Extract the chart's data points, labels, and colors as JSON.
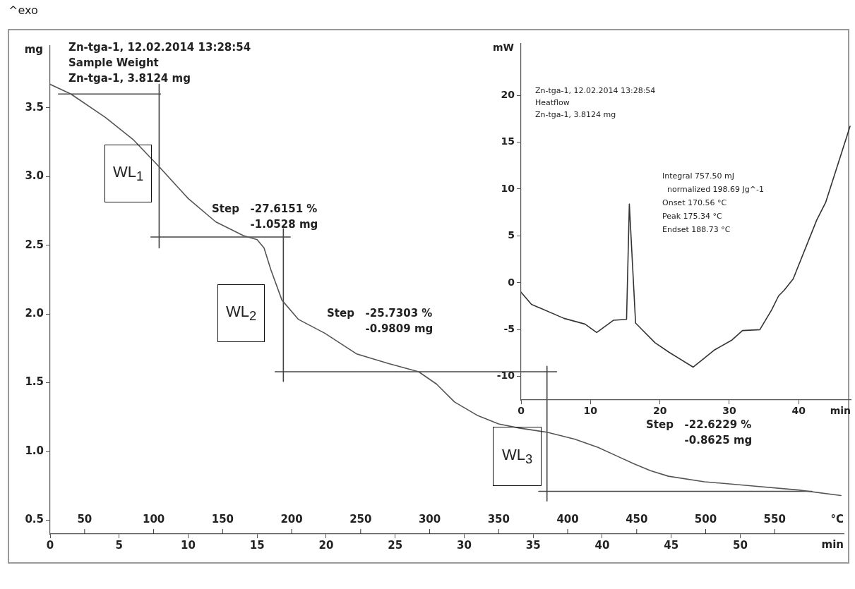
{
  "chart_data": [
    {
      "type": "line",
      "title": "Zn-tga-1, 12.02.2014 13:28:54",
      "subtitle": "Sample Weight",
      "xlabel": "min",
      "x2label": "°C",
      "ylabel": "mg",
      "xlim": [
        0,
        57.5
      ],
      "xticks": [
        0,
        5,
        10,
        15,
        20,
        25,
        30,
        35,
        40,
        45,
        50
      ],
      "x2lim": [
        25,
        600
      ],
      "x2ticks": [
        50,
        100,
        150,
        200,
        250,
        300,
        350,
        400,
        450,
        500,
        550
      ],
      "ylim": [
        0.4,
        3.95
      ],
      "yticks": [
        0.5,
        {
          "value": 1,
          "label": "1.0"
        },
        1.5,
        {
          "value": 2,
          "label": "2.0"
        },
        2.5,
        {
          "value": 3,
          "label": "3.0"
        },
        3.5
      ],
      "grid": false,
      "legend": false,
      "series": [
        {
          "type": "line",
          "color": "#555555",
          "x": [
            0,
            1.5,
            4,
            6,
            8,
            10,
            12,
            14,
            15,
            15.5,
            16,
            16.8,
            18,
            19.9,
            22.2,
            24.5,
            26.7,
            28,
            29.3,
            31,
            32.5,
            34,
            36,
            38,
            39.7,
            41,
            42.3,
            43.5,
            44.8,
            47.4,
            50.8,
            54.2,
            57.3
          ],
          "values": [
            3.67,
            3.6,
            3.43,
            3.27,
            3.06,
            2.84,
            2.67,
            2.57,
            2.54,
            2.48,
            2.32,
            2.1,
            1.96,
            1.86,
            1.71,
            1.64,
            1.58,
            1.49,
            1.36,
            1.26,
            1.2,
            1.17,
            1.14,
            1.09,
            1.03,
            0.97,
            0.91,
            0.86,
            0.82,
            0.78,
            0.75,
            0.72,
            0.68
          ]
        },
        {
          "type": "line",
          "color": "#444444",
          "x": [
            0.6,
            8
          ],
          "values": [
            3.6,
            3.6
          ]
        },
        {
          "type": "line",
          "color": "#444444",
          "x": [
            7.9,
            7.9
          ],
          "values": [
            3.67,
            2.48
          ]
        },
        {
          "type": "line",
          "color": "#444444",
          "x": [
            7.3,
            17.4
          ],
          "values": [
            2.56,
            2.56
          ]
        },
        {
          "type": "line",
          "color": "#444444",
          "x": [
            16.9,
            16.9
          ],
          "values": [
            2.62,
            1.51
          ]
        },
        {
          "type": "line",
          "color": "#444444",
          "x": [
            16.3,
            36.7
          ],
          "values": [
            1.58,
            1.58
          ]
        },
        {
          "type": "line",
          "color": "#444444",
          "x": [
            36,
            36
          ],
          "values": [
            1.62,
            0.64
          ]
        },
        {
          "type": "line",
          "color": "#444444",
          "x": [
            35.4,
            55.2
          ],
          "values": [
            0.71,
            0.71
          ]
        }
      ],
      "annotations": [
        "Zn-tga-1, 3.8124 mg",
        "^exo",
        "Step -27.6151 %\n-1.0528 mg",
        "Step -25.7303 %\n-0.9809 mg",
        "Step -22.6229 %\n-0.8625 mg",
        "WL$_{1}$",
        "WL$_{2}$",
        "WL$_{3}$"
      ]
    },
    {
      "type": "line",
      "title": "Zn-tga-1, 12.02.2014 13:28:54",
      "subtitle": "Heatflow",
      "xlabel": "min",
      "ylabel": "mW",
      "xlim": [
        0,
        47.5
      ],
      "xticks": [
        0,
        10,
        20,
        30,
        40
      ],
      "ylim": [
        -12.5,
        25.5
      ],
      "yticks": [
        -10,
        -5,
        0,
        5,
        10,
        15,
        20
      ],
      "grid": false,
      "legend": false,
      "series": [
        {
          "type": "line",
          "color": "#333333",
          "x": [
            0,
            1.5,
            6.2,
            9.2,
            10.9,
            13.3,
            15.2,
            15.6,
            16.5,
            17.3,
            19.3,
            21.3,
            24.8,
            27.8,
            30.4,
            31.9,
            34.4,
            36.1,
            37.1,
            37.9,
            39.2,
            42.6,
            43.9,
            47.4
          ],
          "values": [
            -1.0,
            -2.3,
            -3.8,
            -4.4,
            -5.3,
            -4.0,
            -3.9,
            8.4,
            -4.3,
            -4.9,
            -6.4,
            -7.4,
            -9.0,
            -7.2,
            -6.1,
            -5.1,
            -5.0,
            -2.9,
            -1.4,
            -0.8,
            0.4,
            6.7,
            8.6,
            16.7
          ]
        }
      ],
      "annotations": [
        "Zn-tga-1, 3.8124 mg",
        "Integral 757.50 mJ",
        "  normalized 198.69 Jg^-1",
        "Onset 170.56 °C",
        "Peak 175.34 °C",
        "Endset 188.73 °C"
      ]
    }
  ]
}
